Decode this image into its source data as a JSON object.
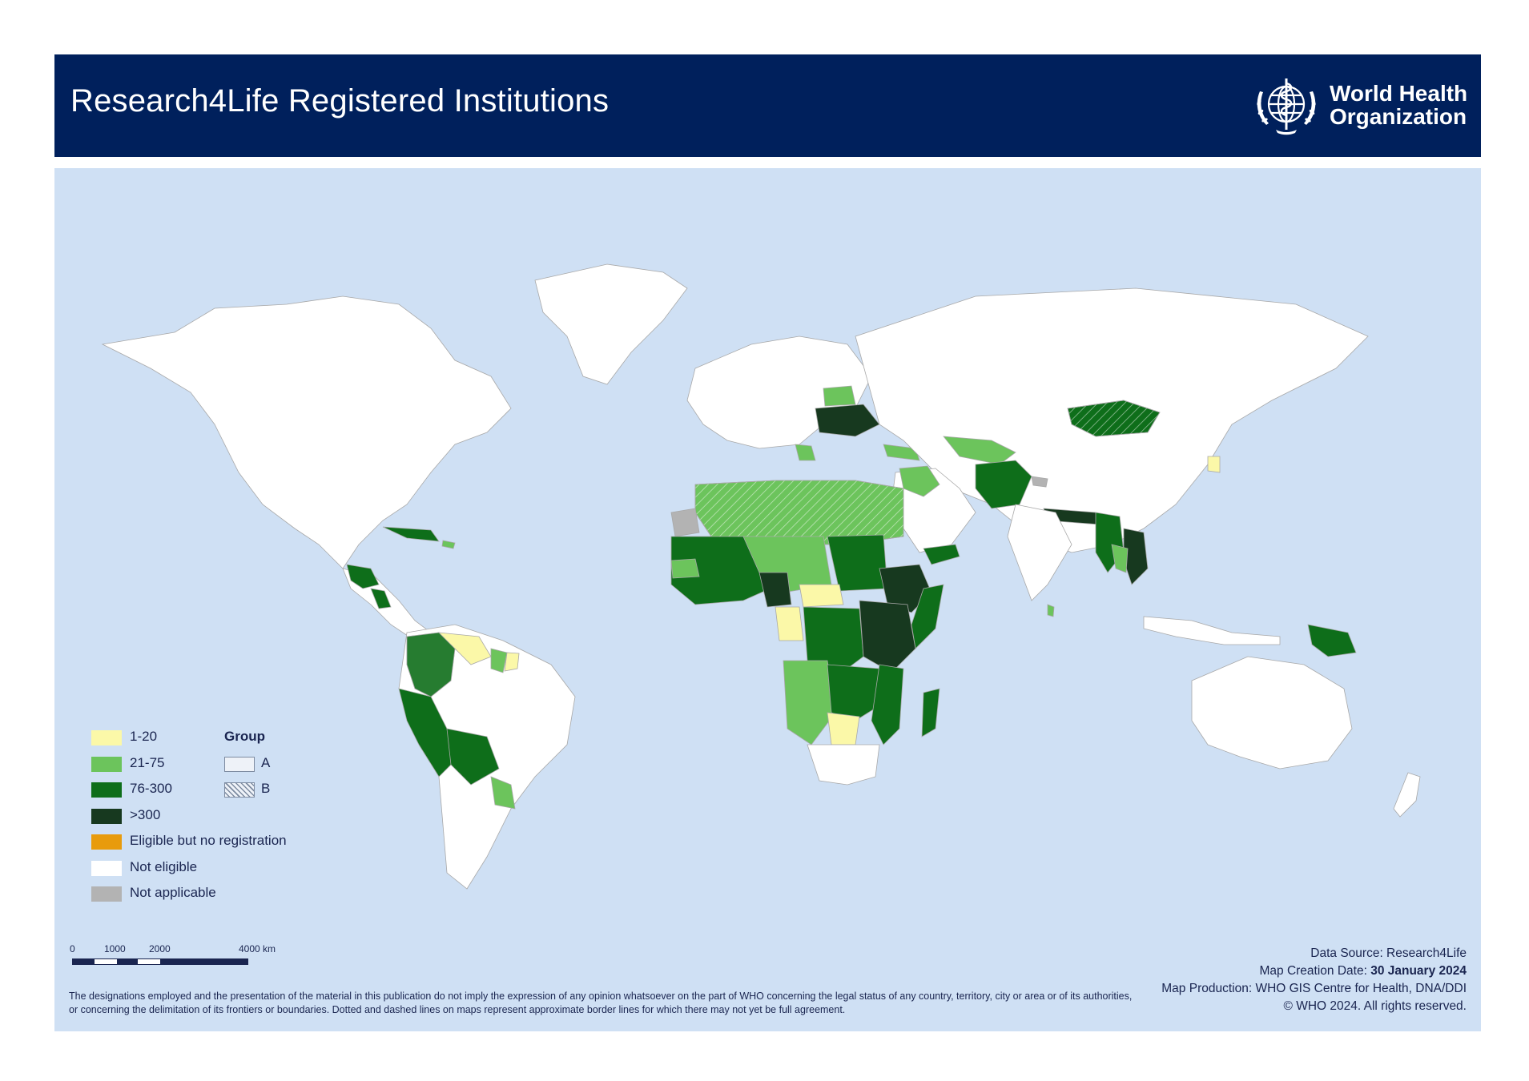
{
  "header": {
    "title": "Research4Life Registered Institutions",
    "org_name_line1": "World Health",
    "org_name_line2": "Organization",
    "logo_icon": "who-emblem-icon",
    "bg_color": "#00205c"
  },
  "map": {
    "ocean_color": "#cfe0f4",
    "land_default_color": "#ffffff"
  },
  "legend": {
    "items": [
      {
        "label": "1-20",
        "color": "#fbf8a8"
      },
      {
        "label": "21-75",
        "color": "#6cc45c"
      },
      {
        "label": "76-300",
        "color": "#0e6e1a"
      },
      {
        "label": ">300",
        "color": "#17391f"
      },
      {
        "label": "Eligible but no registration",
        "color": "#e89b0c"
      },
      {
        "label": "Not eligible",
        "color": "#ffffff"
      },
      {
        "label": "Not applicable",
        "color": "#b3b3b3"
      }
    ],
    "group_title": "Group",
    "groups": [
      {
        "label": "A",
        "pattern": "none"
      },
      {
        "label": "B",
        "pattern": "hatched"
      }
    ]
  },
  "scale": {
    "labels": [
      "0",
      "1000",
      "2000",
      "4000 km"
    ]
  },
  "footer": {
    "disclaimer": "The designations employed and the presentation of the material in this publication do not imply the expression of any opinion whatsoever on the part of WHO concerning the legal status of any country, territory, city or area or of its authorities, or concerning the delimitation of its frontiers or boundaries. Dotted and dashed lines on maps represent approximate border lines for which there may not yet be full agreement.",
    "data_source": "Data Source: Research4Life",
    "creation_label": "Map Creation Date: ",
    "creation_date": "30 January 2024",
    "production": "Map Production: WHO GIS Centre for Health, DNA/DDI",
    "copyright": "© WHO 2024. All rights reserved."
  }
}
